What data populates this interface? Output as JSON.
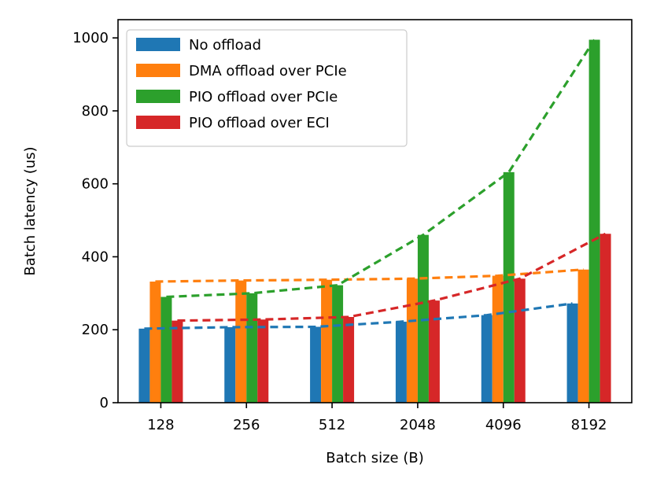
{
  "chart_data": {
    "type": "bar",
    "title": "",
    "xlabel": "Batch size (B)",
    "ylabel": "Batch latency (us)",
    "categories": [
      "128",
      "256",
      "512",
      "2048",
      "4096",
      "8192"
    ],
    "ylim": [
      0,
      1050
    ],
    "yticks": [
      0,
      200,
      400,
      600,
      800,
      1000
    ],
    "grid": false,
    "legend_position": "top-left",
    "series": [
      {
        "name": "No offload",
        "color": "#1f77b4",
        "values": [
          203,
          207,
          208,
          222,
          240,
          272
        ]
      },
      {
        "name": "DMA offload over PCIe",
        "color": "#ff7f0e",
        "values": [
          332,
          335,
          337,
          340,
          348,
          365
        ]
      },
      {
        "name": "PIO offload over PCIe",
        "color": "#2ca02c",
        "values": [
          290,
          300,
          322,
          460,
          632,
          995
        ]
      },
      {
        "name": "PIO offload over ECI",
        "color": "#d62728",
        "values": [
          225,
          228,
          235,
          280,
          340,
          463
        ]
      }
    ],
    "annotations": "dashed trend lines connect each series' bar tops"
  }
}
